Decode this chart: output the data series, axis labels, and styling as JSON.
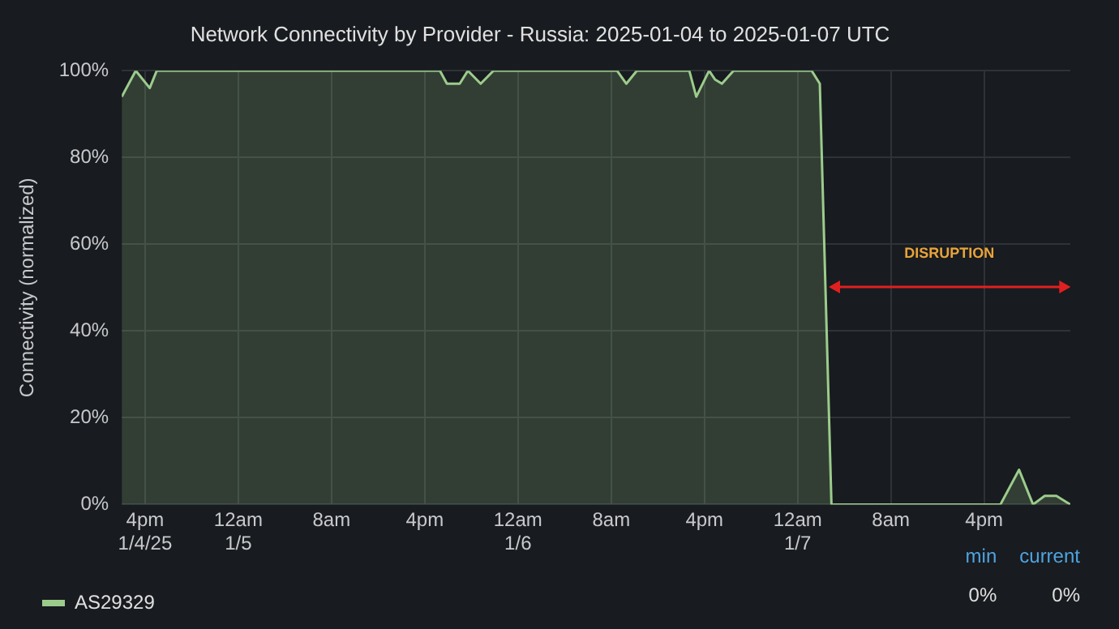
{
  "chart_data": {
    "type": "area",
    "title": "Network Connectivity by Provider - Russia: 2025-01-04 to 2025-01-07 UTC",
    "ylabel": "Connectivity (normalized)",
    "x": [
      "2025-01-04T14:00",
      "2025-01-04T15:12",
      "2025-01-04T16:24",
      "2025-01-04T17:00",
      "2025-01-05T17:18",
      "2025-01-05T17:54",
      "2025-01-05T19:00",
      "2025-01-05T19:42",
      "2025-01-05T20:48",
      "2025-01-05T21:54",
      "2025-01-06T08:30",
      "2025-01-06T09:18",
      "2025-01-06T10:12",
      "2025-01-06T14:42",
      "2025-01-06T15:18",
      "2025-01-06T16:24",
      "2025-01-06T16:54",
      "2025-01-06T17:30",
      "2025-01-06T18:30",
      "2025-01-07T01:12",
      "2025-01-07T01:54",
      "2025-01-07T02:54",
      "2025-01-07T17:24",
      "2025-01-07T19:00",
      "2025-01-07T20:12",
      "2025-01-07T21:12",
      "2025-01-07T22:12",
      "2025-01-07T23:24"
    ],
    "series": [
      {
        "name": "AS29329",
        "color": "#9ccc8c",
        "values": [
          94,
          100,
          96,
          100,
          100,
          97,
          97,
          100,
          97,
          100,
          100,
          97,
          100,
          100,
          94,
          100,
          98,
          97,
          100,
          100,
          97,
          0,
          0,
          8,
          0,
          2,
          2,
          0
        ]
      }
    ],
    "xlim": [
      "2025-01-04T14:00",
      "2025-01-07T23:24"
    ],
    "xticks": [
      {
        "value": "2025-01-04T16:00",
        "label": "4pm\n1/4/25"
      },
      {
        "value": "2025-01-05T00:00",
        "label": "12am\n1/5"
      },
      {
        "value": "2025-01-05T08:00",
        "label": "8am"
      },
      {
        "value": "2025-01-05T16:00",
        "label": "4pm"
      },
      {
        "value": "2025-01-06T00:00",
        "label": "12am\n1/6"
      },
      {
        "value": "2025-01-06T08:00",
        "label": "8am"
      },
      {
        "value": "2025-01-06T16:00",
        "label": "4pm"
      },
      {
        "value": "2025-01-07T00:00",
        "label": "12am\n1/7"
      },
      {
        "value": "2025-01-07T08:00",
        "label": "8am"
      },
      {
        "value": "2025-01-07T16:00",
        "label": "4pm"
      }
    ],
    "ylim": [
      0,
      100
    ],
    "yticks": [
      {
        "value": 0,
        "label": "0%"
      },
      {
        "value": 20,
        "label": "20%"
      },
      {
        "value": 40,
        "label": "40%"
      },
      {
        "value": 60,
        "label": "60%"
      },
      {
        "value": 80,
        "label": "80%"
      },
      {
        "value": 100,
        "label": "100%"
      }
    ],
    "annotations": [
      "DISRUPTION",
      "min",
      "current",
      "0%",
      "0%"
    ],
    "grid": true,
    "legend": "bottom",
    "marker": "none",
    "line_style": "solid"
  }
}
